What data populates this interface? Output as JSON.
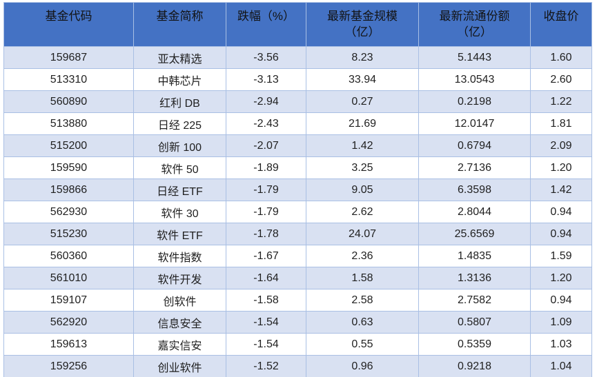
{
  "colors": {
    "header_bg": "#4472c4",
    "header_text": "#121212",
    "row_alt_bg": "#d9e1f2",
    "row_bg": "#ffffff",
    "border": "#a9bfe4",
    "body_text": "#1f1f1f"
  },
  "table": {
    "columns": [
      {
        "key": "code",
        "label": "基金代码"
      },
      {
        "key": "name",
        "label": "基金简称"
      },
      {
        "key": "drop",
        "label": "跌幅（%）"
      },
      {
        "key": "scale",
        "label": "最新基金规模",
        "label2": "（亿）"
      },
      {
        "key": "shares",
        "label": "最新流通份额",
        "label2": "（亿）"
      },
      {
        "key": "close",
        "label": "收盘价"
      }
    ],
    "rows": [
      {
        "code": "159687",
        "name": "亚太精选",
        "drop": "-3.56",
        "scale": "8.23",
        "shares": "5.1443",
        "close": "1.60"
      },
      {
        "code": "513310",
        "name": "中韩芯片",
        "drop": "-3.13",
        "scale": "33.94",
        "shares": "13.0543",
        "close": "2.60"
      },
      {
        "code": "560890",
        "name": "红利 DB",
        "drop": "-2.94",
        "scale": "0.27",
        "shares": "0.2198",
        "close": "1.22"
      },
      {
        "code": "513880",
        "name": "日经 225",
        "drop": "-2.43",
        "scale": "21.69",
        "shares": "12.0147",
        "close": "1.81"
      },
      {
        "code": "515200",
        "name": "创新 100",
        "drop": "-2.07",
        "scale": "1.42",
        "shares": "0.6794",
        "close": "2.09"
      },
      {
        "code": "159590",
        "name": "软件 50",
        "drop": "-1.89",
        "scale": "3.25",
        "shares": "2.7136",
        "close": "1.20"
      },
      {
        "code": "159866",
        "name": "日经 ETF",
        "drop": "-1.79",
        "scale": "9.05",
        "shares": "6.3598",
        "close": "1.42"
      },
      {
        "code": "562930",
        "name": "软件 30",
        "drop": "-1.79",
        "scale": "2.62",
        "shares": "2.8044",
        "close": "0.94"
      },
      {
        "code": "515230",
        "name": "软件 ETF",
        "drop": "-1.78",
        "scale": "24.07",
        "shares": "25.6569",
        "close": "0.94"
      },
      {
        "code": "560360",
        "name": "软件指数",
        "drop": "-1.67",
        "scale": "2.36",
        "shares": "1.4835",
        "close": "1.59"
      },
      {
        "code": "561010",
        "name": "软件开发",
        "drop": "-1.64",
        "scale": "1.58",
        "shares": "1.3136",
        "close": "1.20"
      },
      {
        "code": "159107",
        "name": "创软件",
        "drop": "-1.58",
        "scale": "2.58",
        "shares": "2.7582",
        "close": "0.94"
      },
      {
        "code": "562920",
        "name": "信息安全",
        "drop": "-1.54",
        "scale": "0.63",
        "shares": "0.5807",
        "close": "1.09"
      },
      {
        "code": "159613",
        "name": "嘉实信安",
        "drop": "-1.54",
        "scale": "0.55",
        "shares": "0.5359",
        "close": "1.03"
      },
      {
        "code": "159256",
        "name": "创业软件",
        "drop": "-1.52",
        "scale": "0.96",
        "shares": "0.9218",
        "close": "1.04"
      }
    ]
  }
}
